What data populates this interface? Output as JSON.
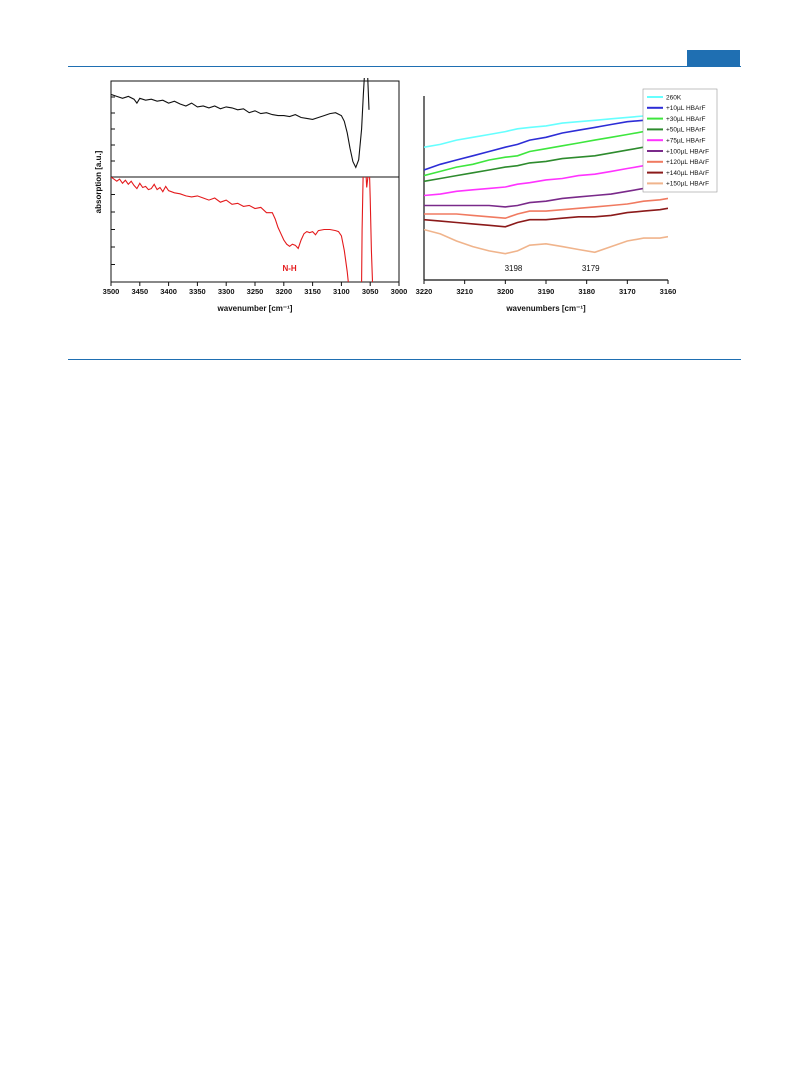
{
  "page": {
    "header_color": "#1f6fb2",
    "rule_color": "#1f6fb2"
  },
  "chart_data": [
    {
      "type": "line",
      "panel": "left-top",
      "xlim": [
        3500,
        3000
      ],
      "color": "#111111",
      "x": [
        3500,
        3490,
        3480,
        3470,
        3460,
        3455,
        3450,
        3440,
        3430,
        3420,
        3410,
        3400,
        3390,
        3380,
        3370,
        3360,
        3350,
        3340,
        3330,
        3320,
        3310,
        3300,
        3290,
        3280,
        3270,
        3260,
        3250,
        3240,
        3230,
        3220,
        3210,
        3200,
        3190,
        3180,
        3170,
        3160,
        3150,
        3140,
        3130,
        3120,
        3110,
        3100,
        3095,
        3090,
        3085,
        3080,
        3075,
        3070,
        3065,
        3062,
        3060,
        3058,
        3055,
        3052
      ],
      "y": [
        0.86,
        0.84,
        0.82,
        0.84,
        0.81,
        0.77,
        0.82,
        0.8,
        0.81,
        0.79,
        0.8,
        0.77,
        0.79,
        0.76,
        0.74,
        0.77,
        0.73,
        0.74,
        0.72,
        0.74,
        0.71,
        0.73,
        0.72,
        0.7,
        0.71,
        0.67,
        0.69,
        0.66,
        0.67,
        0.65,
        0.64,
        0.64,
        0.63,
        0.65,
        0.62,
        0.61,
        0.6,
        0.62,
        0.64,
        0.66,
        0.67,
        0.64,
        0.58,
        0.46,
        0.3,
        0.16,
        0.1,
        0.18,
        0.5,
        0.85,
        1.05,
        1.25,
        1.15,
        0.7
      ]
    },
    {
      "type": "line",
      "panel": "left-bottom",
      "xlim": [
        3500,
        3000
      ],
      "xlabel": "wavenumber [cm⁻¹]",
      "ylabel": "absorption [a.u.]",
      "xticks": [
        3500,
        3450,
        3400,
        3350,
        3300,
        3250,
        3200,
        3150,
        3100,
        3050,
        3000
      ],
      "color": "#e41a1c",
      "annotation": "N-H",
      "annotation_x": 3190,
      "x": [
        3500,
        3490,
        3485,
        3480,
        3475,
        3470,
        3465,
        3460,
        3455,
        3450,
        3445,
        3440,
        3435,
        3430,
        3425,
        3420,
        3415,
        3410,
        3405,
        3400,
        3390,
        3380,
        3370,
        3360,
        3350,
        3340,
        3330,
        3320,
        3310,
        3300,
        3290,
        3280,
        3270,
        3260,
        3250,
        3240,
        3230,
        3220,
        3215,
        3210,
        3205,
        3200,
        3195,
        3190,
        3185,
        3180,
        3175,
        3170,
        3165,
        3160,
        3155,
        3150,
        3145,
        3140,
        3130,
        3120,
        3110,
        3105,
        3100,
        3095,
        3090,
        3088
      ],
      "y": [
        1.0,
        0.96,
        0.98,
        0.94,
        0.97,
        0.93,
        0.96,
        0.92,
        0.89,
        0.94,
        0.9,
        0.91,
        0.88,
        0.89,
        0.93,
        0.88,
        0.9,
        0.86,
        0.91,
        0.87,
        0.85,
        0.84,
        0.82,
        0.81,
        0.82,
        0.8,
        0.78,
        0.8,
        0.76,
        0.78,
        0.74,
        0.75,
        0.72,
        0.73,
        0.7,
        0.71,
        0.66,
        0.66,
        0.6,
        0.52,
        0.46,
        0.4,
        0.36,
        0.34,
        0.36,
        0.35,
        0.32,
        0.4,
        0.46,
        0.48,
        0.47,
        0.48,
        0.45,
        0.49,
        0.5,
        0.5,
        0.49,
        0.48,
        0.44,
        0.3,
        0.1,
        0.0
      ]
    },
    {
      "type": "line",
      "panel": "left-bottom-spike",
      "color": "#e41a1c",
      "x": [
        3065,
        3064,
        3062,
        3060,
        3058,
        3056,
        3054,
        3052,
        3050,
        3048,
        3046
      ],
      "y": [
        0.0,
        0.5,
        1.1,
        1.3,
        1.1,
        0.9,
        1.0,
        1.2,
        0.8,
        0.3,
        0.0
      ]
    },
    {
      "type": "line",
      "panel": "right",
      "xlim": [
        3220,
        3160
      ],
      "xlabel": "wavenumbers [cm⁻¹]",
      "xticks": [
        3220,
        3210,
        3200,
        3190,
        3180,
        3170,
        3160
      ],
      "annotations": [
        {
          "text": "3198",
          "x": 3198
        },
        {
          "text": "3179",
          "x": 3179
        }
      ],
      "x": [
        3220,
        3216,
        3212,
        3208,
        3204,
        3200,
        3197,
        3194,
        3190,
        3186,
        3182,
        3178,
        3174,
        3170,
        3166,
        3162,
        3160
      ],
      "series": [
        {
          "name": "260K",
          "color": "#66ffff",
          "values": [
            0.78,
            0.8,
            0.83,
            0.85,
            0.87,
            0.89,
            0.91,
            0.92,
            0.93,
            0.95,
            0.96,
            0.97,
            0.98,
            0.99,
            1.0,
            1.0,
            1.0
          ]
        },
        {
          "name": "+10µL HBArF",
          "color": "#2d2dd6",
          "values": [
            0.62,
            0.66,
            0.69,
            0.72,
            0.75,
            0.78,
            0.8,
            0.83,
            0.85,
            0.88,
            0.9,
            0.92,
            0.94,
            0.96,
            0.97,
            0.99,
            1.0
          ]
        },
        {
          "name": "+30µL HBArF",
          "color": "#3ee63e",
          "values": [
            0.58,
            0.61,
            0.64,
            0.66,
            0.69,
            0.71,
            0.72,
            0.75,
            0.77,
            0.79,
            0.81,
            0.83,
            0.85,
            0.87,
            0.89,
            0.91,
            0.92
          ]
        },
        {
          "name": "+50µL HBArF",
          "color": "#2e8b2e",
          "values": [
            0.54,
            0.56,
            0.58,
            0.6,
            0.62,
            0.64,
            0.65,
            0.67,
            0.68,
            0.7,
            0.71,
            0.72,
            0.74,
            0.76,
            0.78,
            0.8,
            0.81
          ]
        },
        {
          "name": "+75µL HBArF",
          "color": "#ff33ff",
          "values": [
            0.44,
            0.45,
            0.47,
            0.48,
            0.49,
            0.5,
            0.52,
            0.53,
            0.55,
            0.56,
            0.58,
            0.59,
            0.61,
            0.63,
            0.65,
            0.66,
            0.67
          ]
        },
        {
          "name": "+100µL HBArF",
          "color": "#7a2a8a",
          "values": [
            0.37,
            0.37,
            0.37,
            0.37,
            0.37,
            0.36,
            0.37,
            0.39,
            0.4,
            0.42,
            0.43,
            0.44,
            0.45,
            0.47,
            0.49,
            0.51,
            0.52
          ]
        },
        {
          "name": "+120µL HBArF",
          "color": "#f07a60",
          "values": [
            0.31,
            0.31,
            0.31,
            0.3,
            0.29,
            0.28,
            0.31,
            0.33,
            0.33,
            0.34,
            0.35,
            0.36,
            0.37,
            0.38,
            0.4,
            0.41,
            0.42
          ]
        },
        {
          "name": "+140µL HBArF",
          "color": "#8b1a1a",
          "values": [
            0.27,
            0.26,
            0.25,
            0.24,
            0.23,
            0.22,
            0.25,
            0.27,
            0.27,
            0.28,
            0.29,
            0.29,
            0.3,
            0.32,
            0.33,
            0.34,
            0.35
          ]
        },
        {
          "name": "+150µL HBArF",
          "color": "#f0b48c",
          "values": [
            0.2,
            0.17,
            0.12,
            0.08,
            0.05,
            0.03,
            0.05,
            0.09,
            0.1,
            0.08,
            0.06,
            0.04,
            0.08,
            0.12,
            0.14,
            0.14,
            0.15
          ]
        }
      ]
    }
  ]
}
